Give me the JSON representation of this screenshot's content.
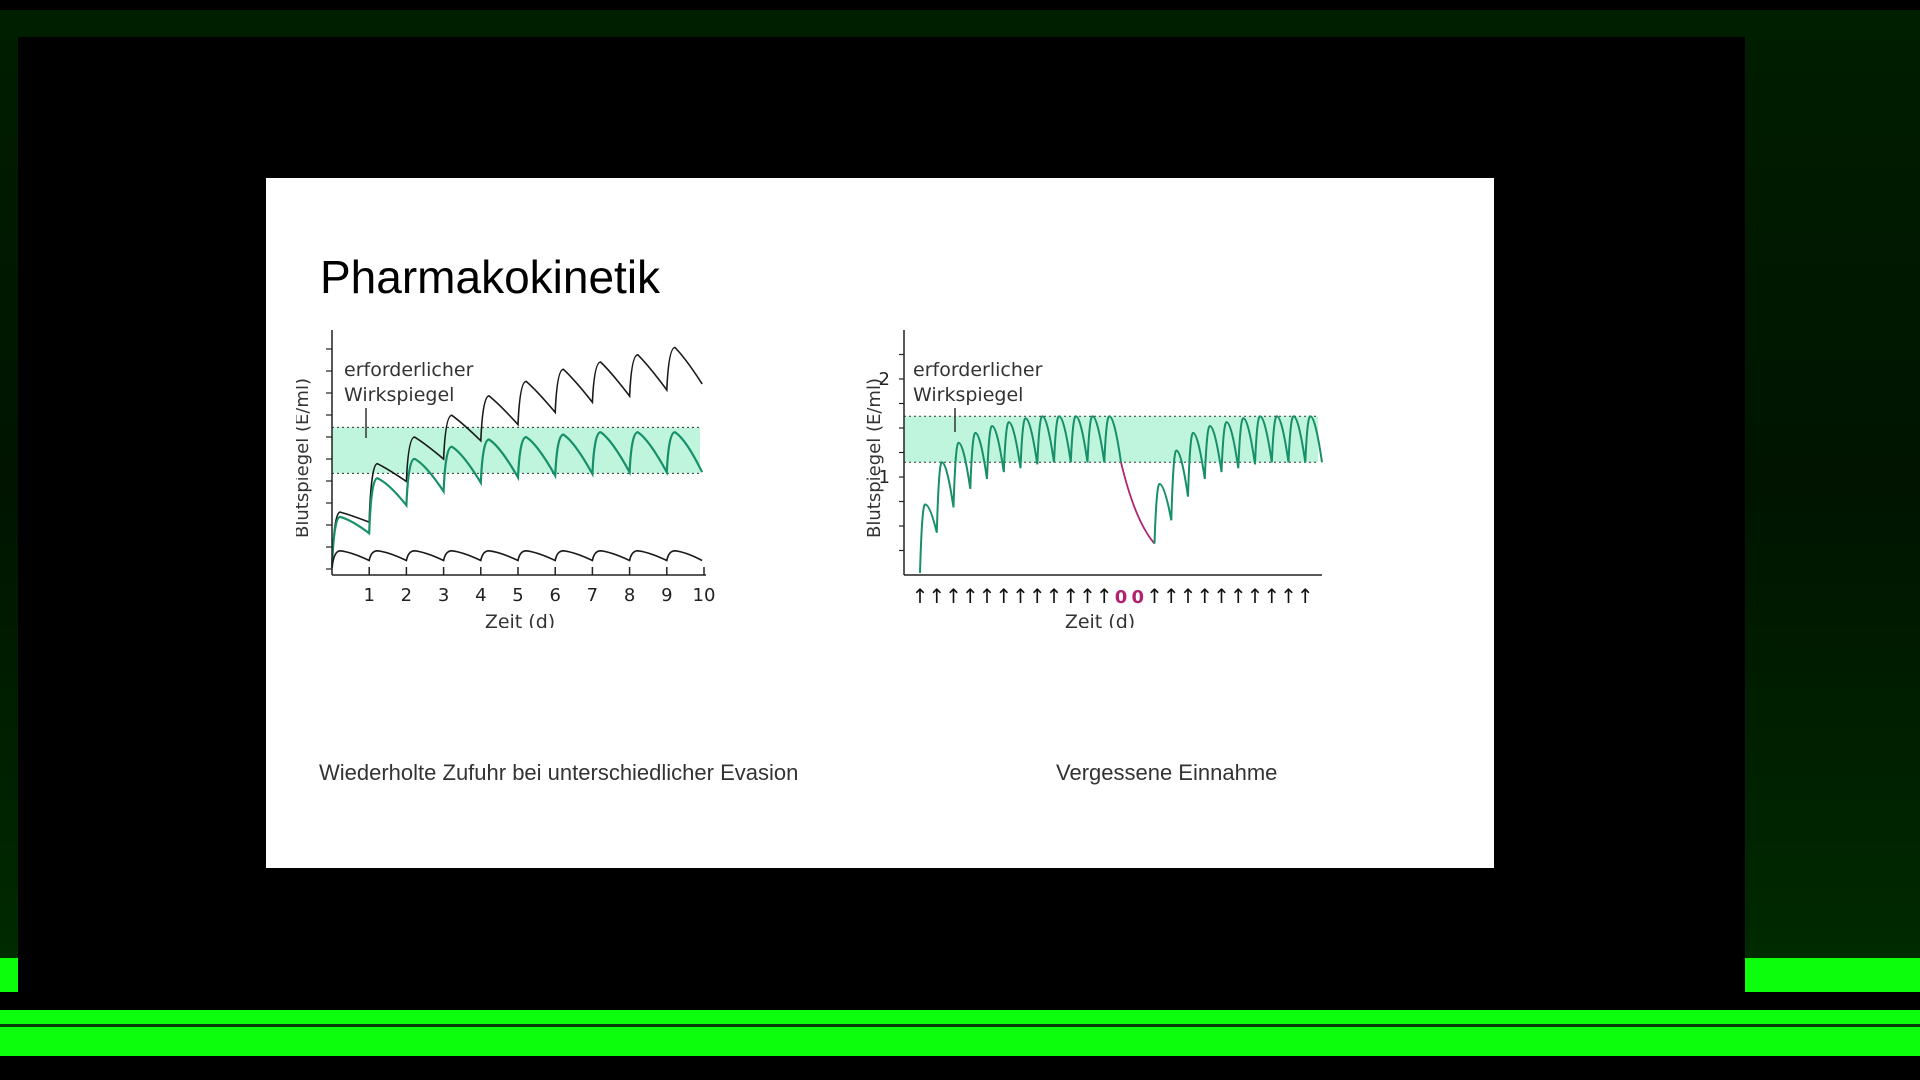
{
  "slide": {
    "title": "Pharmakokinetik",
    "caption_left": "Wiederholte Zufuhr bei unterschiedlicher Evasion",
    "caption_right": "Vergessene Einnahme"
  },
  "chart_data": [
    {
      "type": "line",
      "title": "",
      "xlabel": "Zeit (d)",
      "ylabel": "Blutspiegel (E/ml)",
      "annotation": [
        "erforderlicher",
        "Wirkspiegel"
      ],
      "x_ticks": [
        "1",
        "2",
        "3",
        "4",
        "5",
        "6",
        "7",
        "8",
        "9",
        "10"
      ],
      "xlim": [
        0,
        10
      ],
      "band": {
        "lower": 0.42,
        "upper": 0.61,
        "color": "#bff5dc"
      },
      "series": [
        {
          "color": "#1a1a1a",
          "doses": [
            0,
            1,
            2,
            3,
            4,
            5,
            6,
            7,
            8,
            9
          ],
          "peaks": [
            0.26,
            0.46,
            0.57,
            0.66,
            0.74,
            0.8,
            0.85,
            0.88,
            0.91,
            0.94
          ]
        },
        {
          "color": "#17906a",
          "doses": [
            0,
            1,
            2,
            3,
            4,
            5,
            6,
            7,
            8,
            9
          ],
          "peaks": [
            0.24,
            0.4,
            0.48,
            0.53,
            0.56,
            0.57,
            0.58,
            0.59,
            0.59,
            0.59
          ]
        },
        {
          "color": "#1a1a1a",
          "doses": [
            0,
            1,
            2,
            3,
            4,
            5,
            6,
            7,
            8,
            9
          ],
          "peaks": [
            0.1,
            0.1,
            0.1,
            0.1,
            0.1,
            0.1,
            0.1,
            0.1,
            0.1,
            0.1
          ]
        }
      ]
    },
    {
      "type": "line",
      "title": "",
      "xlabel": "Zeit (d)",
      "ylabel": "Blutspiegel (E/ml)",
      "annotation": [
        "erforderlicher",
        "Wirkspiegel"
      ],
      "y_ticks": [
        "1",
        "2"
      ],
      "ylim": [
        0,
        2.5
      ],
      "band": {
        "lower": 1.15,
        "upper": 1.62,
        "color": "#bff5dc"
      },
      "dose_markers": [
        "↑",
        "↑",
        "↑",
        "↑",
        "↑",
        "↑",
        "↑",
        "↑",
        "↑",
        "↑",
        "↑",
        "↑",
        "0",
        "0",
        "↑",
        "↑",
        "↑",
        "↑",
        "↑",
        "↑",
        "↑",
        "↑",
        "↑",
        "↑"
      ],
      "missed_color": "#b0246e",
      "series": [
        {
          "color": "#17906a",
          "name": ""
        },
        {
          "color": "#b0246e",
          "name": ""
        }
      ]
    }
  ]
}
